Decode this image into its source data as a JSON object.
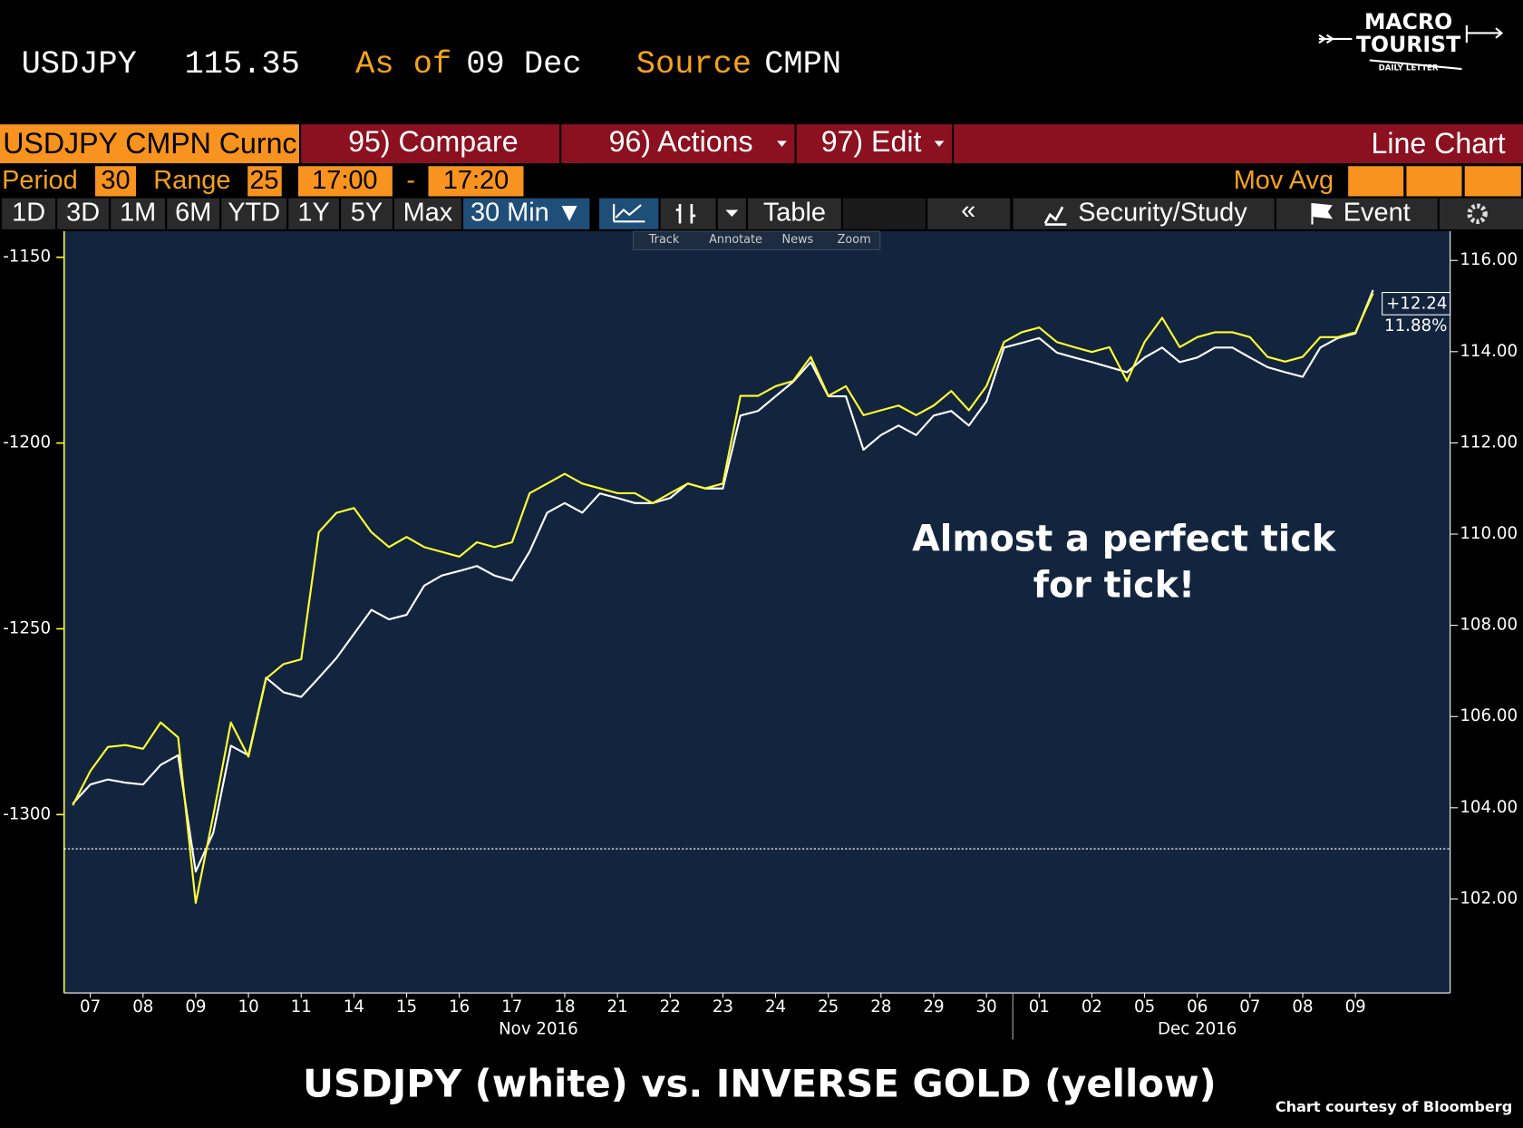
{
  "header": {
    "ticker": "USDJPY",
    "price": "115.35",
    "as_of_label": "As of",
    "as_of": "09 Dec",
    "source_label": "Source",
    "source": "CMPN",
    "logo_line1": "MACRO",
    "logo_line2": "TOURIST",
    "logo_tagline": "DAILY LETTER"
  },
  "toolbar": {
    "security": "USDJPY CMPN Curnc",
    "compare": "95) Compare",
    "actions": "96) Actions",
    "edit": "97) Edit",
    "chart_kind": "Line Chart",
    "period_label": "Period",
    "period": "30",
    "range_label": "Range",
    "range": "25",
    "start_time": "17:00",
    "dash": "-",
    "end_time": "17:20",
    "mov_avg": "Mov Avg",
    "ranges": [
      "1D",
      "3D",
      "1M",
      "6M",
      "YTD",
      "1Y",
      "5Y",
      "Max"
    ],
    "interval": "30 Min ▼",
    "table": "Table",
    "collapse": "«",
    "security_study": "Security/Study",
    "event": "Event",
    "tools": [
      "Track",
      "Annotate",
      "News",
      "Zoom"
    ]
  },
  "chart_data": {
    "type": "line",
    "categories": [
      null,
      "07",
      null,
      null,
      "08",
      null,
      null,
      "09",
      null,
      null,
      "10",
      null,
      null,
      "11",
      null,
      null,
      "14",
      null,
      null,
      "15",
      null,
      null,
      "16",
      null,
      null,
      "17",
      null,
      null,
      "18",
      null,
      null,
      "21",
      null,
      null,
      "22",
      null,
      null,
      "23",
      null,
      null,
      "24",
      null,
      null,
      "25",
      null,
      null,
      "28",
      null,
      null,
      "29",
      null,
      null,
      "30",
      null,
      null,
      "01",
      null,
      null,
      "02",
      null,
      null,
      "05",
      null,
      null,
      "06",
      null,
      null,
      "07",
      null,
      null,
      "08",
      null,
      null,
      "09",
      null
    ],
    "x_groups": [
      "Nov 2016",
      "Dec 2016"
    ],
    "series": [
      {
        "color": "#ffffff",
        "axis": "y2",
        "values": [
          104.09,
          104.51,
          104.62,
          104.55,
          104.51,
          104.94,
          105.15,
          102.6,
          103.45,
          105.36,
          105.15,
          106.85,
          106.53,
          106.43,
          106.85,
          107.28,
          107.81,
          108.34,
          108.13,
          108.23,
          108.87,
          109.09,
          109.19,
          109.3,
          109.09,
          108.98,
          109.62,
          110.47,
          110.68,
          110.47,
          110.89,
          110.79,
          110.68,
          110.68,
          110.79,
          111.11,
          111.0,
          111.0,
          112.6,
          112.7,
          113.02,
          113.34,
          113.77,
          113.02,
          113.02,
          111.85,
          112.17,
          112.38,
          112.17,
          112.6,
          112.7,
          112.38,
          112.91,
          114.09,
          114.19,
          114.3,
          113.98,
          113.87,
          113.77,
          113.66,
          113.55,
          113.87,
          114.09,
          113.77,
          113.87,
          114.09,
          114.09,
          113.87,
          113.66,
          113.55,
          113.45,
          114.09,
          114.3,
          114.4,
          115.35
        ]
      },
      {
        "color": "#ffff33",
        "values": [
          -1297.5,
          -1288.3,
          -1281.8,
          -1281.3,
          -1282.3,
          -1275.2,
          -1279.2,
          -1323.8,
          -1300.2,
          -1275.2,
          -1284.4,
          -1263.4,
          -1259.5,
          -1258.2,
          -1224.0,
          -1218.8,
          -1217.5,
          -1224.0,
          -1228.0,
          -1225.3,
          -1228.0,
          -1229.3,
          -1230.6,
          -1226.7,
          -1228.0,
          -1226.7,
          -1213.5,
          -1210.9,
          -1208.3,
          -1210.9,
          -1212.2,
          -1213.5,
          -1213.5,
          -1216.2,
          -1213.5,
          -1210.9,
          -1212.2,
          -1210.9,
          -1187.3,
          -1187.3,
          -1184.7,
          -1183.3,
          -1176.8,
          -1187.3,
          -1184.7,
          -1192.5,
          -1191.2,
          -1189.9,
          -1192.5,
          -1189.9,
          -1186.0,
          -1191.2,
          -1184.7,
          -1172.8,
          -1170.2,
          -1168.9,
          -1172.8,
          -1174.2,
          -1175.5,
          -1174.2,
          -1183.3,
          -1172.8,
          -1166.3,
          -1174.2,
          -1171.5,
          -1170.2,
          -1170.2,
          -1171.5,
          -1176.8,
          -1178.1,
          -1176.8,
          -1171.5,
          -1171.5,
          -1170.2,
          -1159.7
        ]
      }
    ],
    "ylim": [
      -1348,
      -1143
    ],
    "yticks": [
      -1150,
      -1200,
      -1250,
      -1300
    ],
    "y2lim": [
      99.94,
      116.64
    ],
    "y2ticks": [
      {
        "value": 116,
        "label": "116.00"
      },
      {
        "value": 114,
        "label": "114.00"
      },
      {
        "value": 112,
        "label": "112.00"
      },
      {
        "value": 110,
        "label": "110.00"
      },
      {
        "value": 108,
        "label": "108.00"
      },
      {
        "value": 106,
        "label": "106.00"
      },
      {
        "value": 104,
        "label": "104.00"
      },
      {
        "value": 102,
        "label": "102.00"
      }
    ],
    "reference_line": {
      "axis": "y2",
      "value": 103.1
    },
    "last_change": "+12.24",
    "last_change_pct": "11.88%",
    "annotation": [
      "Almost a perfect tick",
      "for tick!"
    ]
  },
  "footer": {
    "caption": "USDJPY (white) vs. INVERSE GOLD (yellow)",
    "credit": "Chart courtesy of Bloomberg"
  }
}
